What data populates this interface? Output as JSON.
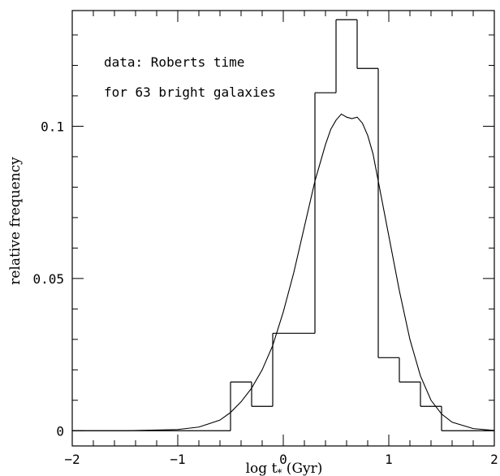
{
  "chart_data": {
    "type": "line",
    "title": "",
    "xlabel": "log t* (Gyr)",
    "xlabel_parts": {
      "main": "log t",
      "sub": "*",
      "rest": " (Gyr)"
    },
    "ylabel": "relative frequency",
    "xlim": [
      -2,
      2
    ],
    "ylim": [
      -0.005,
      0.138
    ],
    "xticks": [
      -2,
      -1,
      0,
      1,
      2
    ],
    "xtick_labels": [
      "−2",
      "−1",
      "0",
      "1",
      "2"
    ],
    "yticks": [
      0,
      0.05,
      0.1
    ],
    "ytick_labels": [
      "0",
      "0.05",
      "0.1"
    ],
    "annotations": [
      "data: Roberts time",
      "for 63 bright galaxies"
    ],
    "grid": false,
    "legend": false,
    "series": [
      {
        "kind": "step-histogram",
        "bin_width": 0.2,
        "bins": [
          {
            "x0": -2.0,
            "x1": -0.5,
            "y": 0.0
          },
          {
            "x0": -0.5,
            "x1": -0.3,
            "y": 0.016
          },
          {
            "x0": -0.3,
            "x1": -0.1,
            "y": 0.008
          },
          {
            "x0": -0.1,
            "x1": 0.3,
            "y": 0.032
          },
          {
            "x0": 0.3,
            "x1": 0.5,
            "y": 0.111
          },
          {
            "x0": 0.5,
            "x1": 0.7,
            "y": 0.135
          },
          {
            "x0": 0.7,
            "x1": 0.9,
            "y": 0.119
          },
          {
            "x0": 0.9,
            "x1": 1.1,
            "y": 0.024
          },
          {
            "x0": 1.1,
            "x1": 1.3,
            "y": 0.016
          },
          {
            "x0": 1.3,
            "x1": 1.5,
            "y": 0.008
          },
          {
            "x0": 1.5,
            "x1": 2.0,
            "y": 0.0
          }
        ]
      },
      {
        "kind": "smooth-curve",
        "x": [
          -2.0,
          -1.5,
          -1.0,
          -0.8,
          -0.6,
          -0.5,
          -0.4,
          -0.3,
          -0.2,
          -0.1,
          0.0,
          0.1,
          0.2,
          0.3,
          0.35,
          0.4,
          0.45,
          0.5,
          0.55,
          0.6,
          0.65,
          0.7,
          0.75,
          0.8,
          0.85,
          0.9,
          0.95,
          1.0,
          1.1,
          1.2,
          1.3,
          1.4,
          1.5,
          1.6,
          1.8,
          2.0
        ],
        "y": [
          0.0,
          0.0,
          0.0004,
          0.0012,
          0.0035,
          0.006,
          0.0095,
          0.014,
          0.02,
          0.028,
          0.039,
          0.052,
          0.067,
          0.082,
          0.088,
          0.094,
          0.099,
          0.102,
          0.104,
          0.103,
          0.1025,
          0.103,
          0.101,
          0.097,
          0.091,
          0.082,
          0.073,
          0.064,
          0.046,
          0.03,
          0.018,
          0.01,
          0.0055,
          0.0028,
          0.0007,
          0.0001
        ]
      }
    ]
  }
}
